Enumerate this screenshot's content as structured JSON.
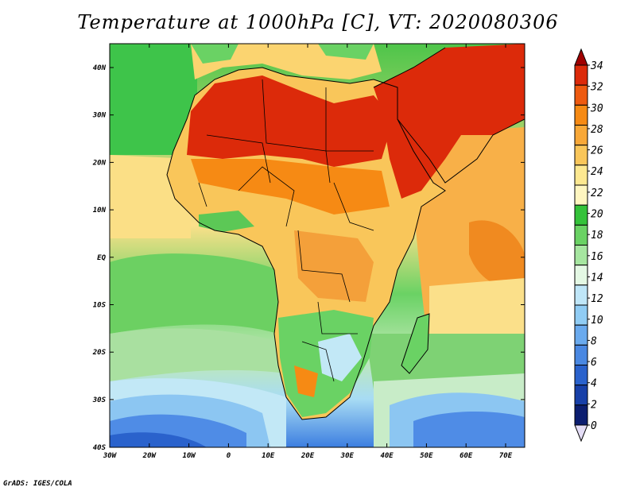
{
  "title": "Temperature at 1000hPa [C], VT: 2020080306",
  "credit": "GrADS: IGES/COLA",
  "map": {
    "lat_labels": [
      "40N",
      "30N",
      "20N",
      "10N",
      "EQ",
      "10S",
      "20S",
      "30S",
      "40S"
    ],
    "lon_labels": [
      "30W",
      "20W",
      "10W",
      "0",
      "10E",
      "20E",
      "30E",
      "40E",
      "50E",
      "60E",
      "70E"
    ]
  },
  "colorbar": {
    "labels": [
      "34",
      "32",
      "30",
      "28",
      "26",
      "24",
      "22",
      "20",
      "18",
      "16",
      "14",
      "12",
      "10",
      "8",
      "6",
      "4",
      "2",
      "0"
    ],
    "colors": [
      "#a00000",
      "#dc2a0a",
      "#ee5a10",
      "#f68a14",
      "#f8a838",
      "#f9c65a",
      "#fde890",
      "#fff6c0",
      "#34c23a",
      "#6ad264",
      "#a6e6a0",
      "#e4f8e4",
      "#bfe6f8",
      "#90ccf4",
      "#6aaaee",
      "#4a88e2",
      "#2a62cc",
      "#1840a8",
      "#0c1e70",
      "#e4ddf6"
    ]
  }
}
